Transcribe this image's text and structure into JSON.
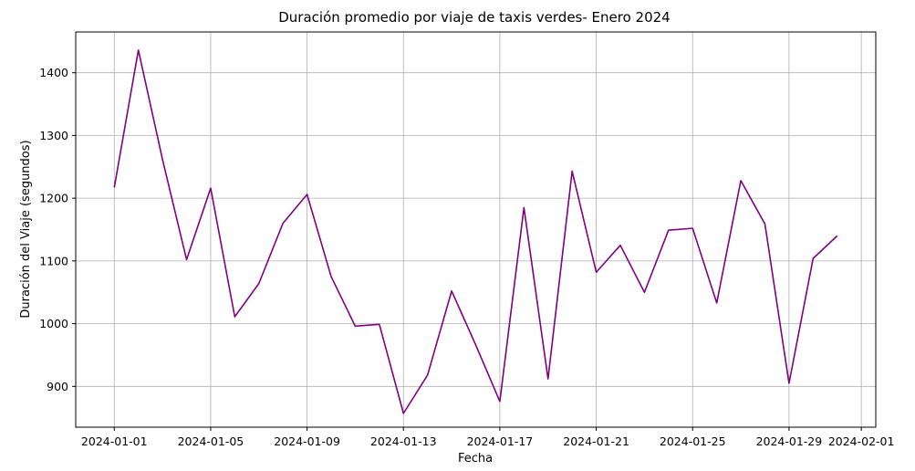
{
  "chart_data": {
    "type": "line",
    "title": "Duración promedio por viaje de taxis verdes- Enero 2024",
    "xlabel": "Fecha",
    "ylabel": "Duración del Viaje (segundos)",
    "x_ticks": [
      "2024-01-01",
      "2024-01-05",
      "2024-01-09",
      "2024-01-13",
      "2024-01-17",
      "2024-01-21",
      "2024-01-25",
      "2024-01-29",
      "2024-02-01"
    ],
    "y_ticks": [
      900,
      1000,
      1100,
      1200,
      1300,
      1400
    ],
    "xlim": [
      "2023-12-30.4",
      "2024-02-01.6"
    ],
    "ylim": [
      835,
      1465
    ],
    "grid": true,
    "series": [
      {
        "color": "#800080",
        "points": [
          {
            "x": "2024-01-01",
            "y": 1217
          },
          {
            "x": "2024-01-02",
            "y": 1436
          },
          {
            "x": "2024-01-03",
            "y": 1262
          },
          {
            "x": "2024-01-04",
            "y": 1102
          },
          {
            "x": "2024-01-05",
            "y": 1216
          },
          {
            "x": "2024-01-06",
            "y": 1011
          },
          {
            "x": "2024-01-07",
            "y": 1064
          },
          {
            "x": "2024-01-08",
            "y": 1160
          },
          {
            "x": "2024-01-09",
            "y": 1206
          },
          {
            "x": "2024-01-10",
            "y": 1075
          },
          {
            "x": "2024-01-11",
            "y": 996
          },
          {
            "x": "2024-01-12",
            "y": 999
          },
          {
            "x": "2024-01-13",
            "y": 857
          },
          {
            "x": "2024-01-14",
            "y": 918
          },
          {
            "x": "2024-01-15",
            "y": 1052
          },
          {
            "x": "2024-01-16",
            "y": 966
          },
          {
            "x": "2024-01-17",
            "y": 876
          },
          {
            "x": "2024-01-18",
            "y": 1185
          },
          {
            "x": "2024-01-19",
            "y": 912
          },
          {
            "x": "2024-01-20",
            "y": 1243
          },
          {
            "x": "2024-01-21",
            "y": 1082
          },
          {
            "x": "2024-01-22",
            "y": 1125
          },
          {
            "x": "2024-01-23",
            "y": 1050
          },
          {
            "x": "2024-01-24",
            "y": 1149
          },
          {
            "x": "2024-01-25",
            "y": 1152
          },
          {
            "x": "2024-01-26",
            "y": 1033
          },
          {
            "x": "2024-01-27",
            "y": 1228
          },
          {
            "x": "2024-01-28",
            "y": 1159
          },
          {
            "x": "2024-01-29",
            "y": 905
          },
          {
            "x": "2024-01-30",
            "y": 1104
          },
          {
            "x": "2024-01-31",
            "y": 1140
          }
        ]
      }
    ]
  }
}
